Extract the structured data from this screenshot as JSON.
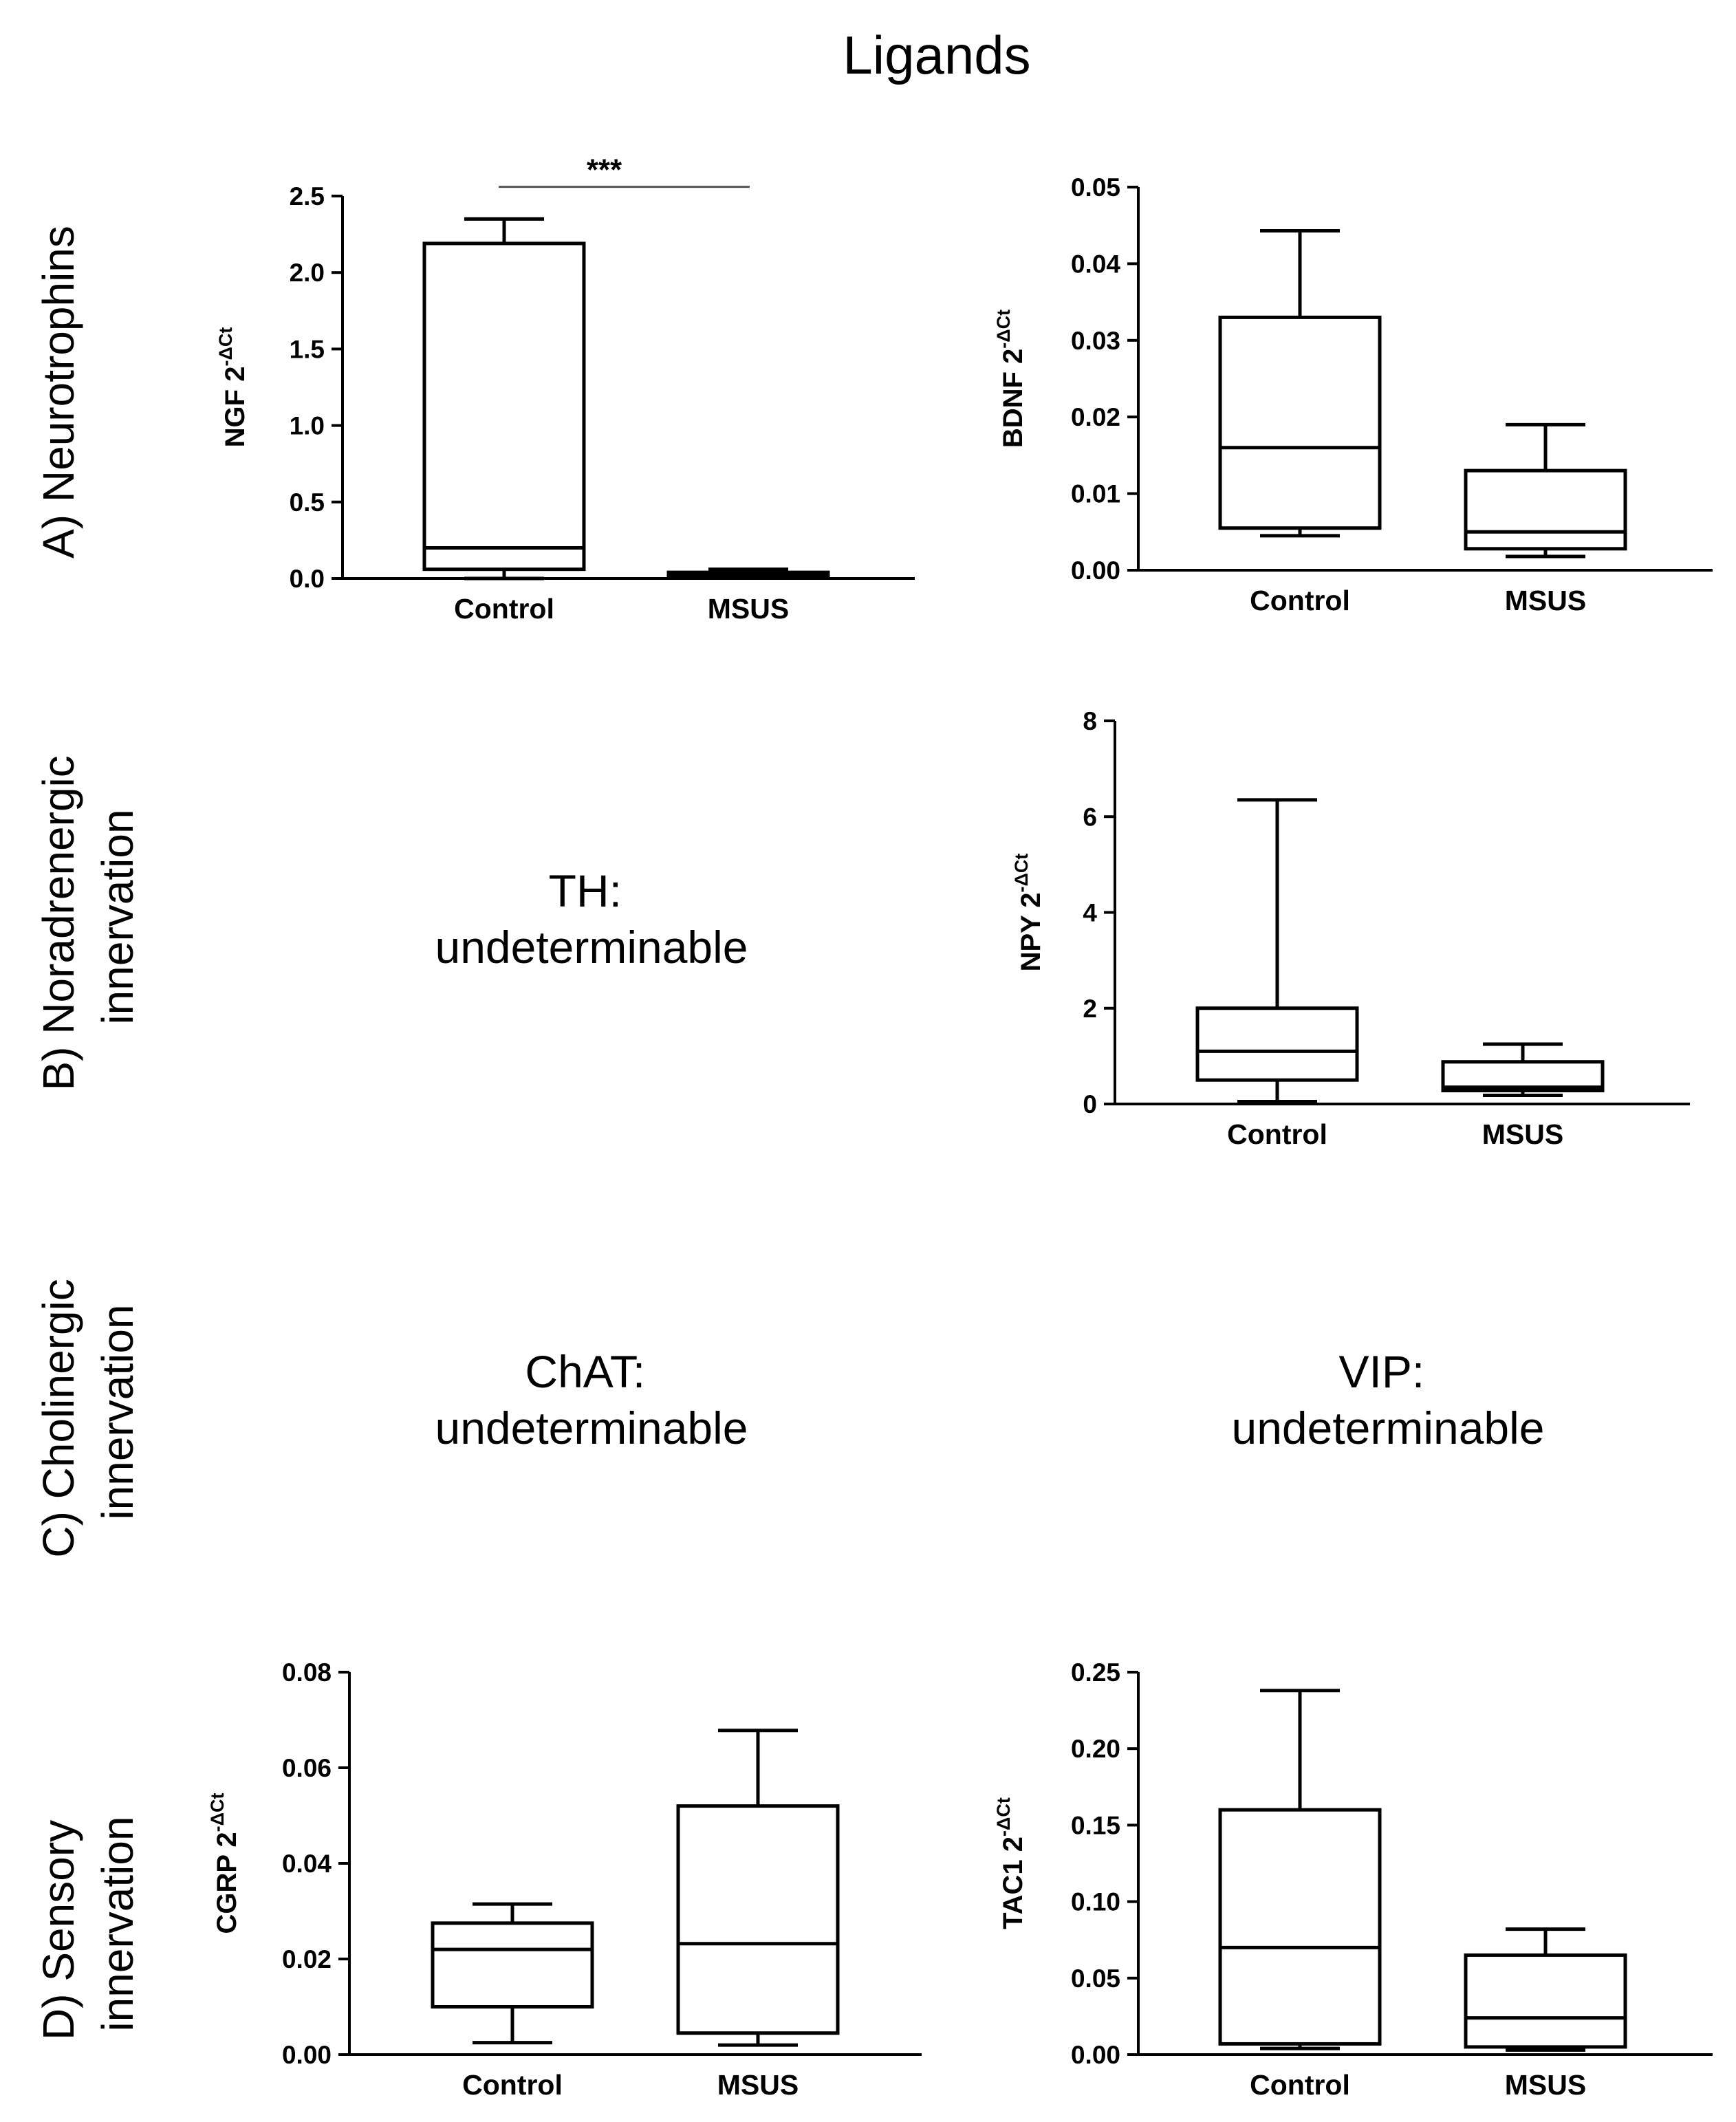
{
  "title": "Ligands",
  "rows": [
    {
      "id": "A",
      "lines": [
        "A) Neurotrophins"
      ]
    },
    {
      "id": "B",
      "lines": [
        "B) Noradrenergic",
        "innervation"
      ]
    },
    {
      "id": "C",
      "lines": [
        "C) Cholinergic",
        "innervation"
      ]
    },
    {
      "id": "D",
      "lines": [
        "D) Sensory",
        "innervation"
      ]
    }
  ],
  "undeterminable": [
    {
      "id": "TH",
      "label": "TH:",
      "text": "undeterminable"
    },
    {
      "id": "ChAT",
      "label": "ChAT:",
      "text": "undeterminable"
    },
    {
      "id": "VIP",
      "label": "VIP:",
      "text": "undeterminable"
    }
  ],
  "chart_data": [
    {
      "id": "ngf",
      "type": "box",
      "gene": "NGF",
      "ylabel_prefix": "2",
      "ylabel_sup": "-ΔCt",
      "categories": [
        "Control",
        "MSUS"
      ],
      "ylim": [
        0,
        2.5
      ],
      "yticks": [
        0,
        0.5,
        1.0,
        1.5,
        2.0,
        2.5
      ],
      "ytick_labels": [
        "0.0",
        "0.5",
        "1.0",
        "1.5",
        "2.0",
        "2.5"
      ],
      "boxes": [
        {
          "min": 0.0,
          "q1": 0.06,
          "median": 0.2,
          "q3": 2.19,
          "max": 2.35
        },
        {
          "min": 0.005,
          "q1": 0.01,
          "median": 0.02,
          "q3": 0.04,
          "max": 0.06
        }
      ],
      "significance": {
        "from": 0,
        "to": 1,
        "label": "***",
        "y": 2.56
      }
    },
    {
      "id": "bdnf",
      "type": "box",
      "gene": "BDNF",
      "ylabel_prefix": "2",
      "ylabel_sup": "-ΔCt",
      "categories": [
        "Control",
        "MSUS"
      ],
      "ylim": [
        0,
        0.05
      ],
      "yticks": [
        0,
        0.01,
        0.02,
        0.03,
        0.04,
        0.05
      ],
      "ytick_labels": [
        "0.00",
        "0.01",
        "0.02",
        "0.03",
        "0.04",
        "0.05"
      ],
      "boxes": [
        {
          "min": 0.0045,
          "q1": 0.0055,
          "median": 0.016,
          "q3": 0.033,
          "max": 0.0443
        },
        {
          "min": 0.0018,
          "q1": 0.0028,
          "median": 0.005,
          "q3": 0.013,
          "max": 0.019
        }
      ]
    },
    {
      "id": "npy",
      "type": "box",
      "gene": "NPY",
      "ylabel_prefix": "2",
      "ylabel_sup": "-ΔCt",
      "categories": [
        "Control",
        "MSUS"
      ],
      "ylim": [
        0,
        8
      ],
      "yticks": [
        0,
        2,
        4,
        6,
        8
      ],
      "ytick_labels": [
        "0",
        "2",
        "4",
        "6",
        "8"
      ],
      "boxes": [
        {
          "min": 0.05,
          "q1": 0.5,
          "median": 1.1,
          "q3": 2.0,
          "max": 6.35
        },
        {
          "min": 0.18,
          "q1": 0.28,
          "median": 0.35,
          "q3": 0.88,
          "max": 1.25
        }
      ]
    },
    {
      "id": "cgrp",
      "type": "box",
      "gene": "CGRP",
      "ylabel_prefix": "2",
      "ylabel_sup": "-ΔCt",
      "categories": [
        "Control",
        "MSUS"
      ],
      "ylim": [
        0,
        0.08
      ],
      "yticks": [
        0,
        0.02,
        0.04,
        0.06,
        0.08
      ],
      "ytick_labels": [
        "0.00",
        "0.02",
        "0.04",
        "0.06",
        "0.08"
      ],
      "boxes": [
        {
          "min": 0.0025,
          "q1": 0.01,
          "median": 0.022,
          "q3": 0.0275,
          "max": 0.0315
        },
        {
          "min": 0.002,
          "q1": 0.0045,
          "median": 0.0232,
          "q3": 0.052,
          "max": 0.0678
        }
      ]
    },
    {
      "id": "tac1",
      "type": "box",
      "gene": "TAC1",
      "ylabel_prefix": "2",
      "ylabel_sup": "-ΔCt",
      "categories": [
        "Control",
        "MSUS"
      ],
      "ylim": [
        0,
        0.25
      ],
      "yticks": [
        0,
        0.05,
        0.1,
        0.15,
        0.2,
        0.25
      ],
      "ytick_labels": [
        "0.00",
        "0.05",
        "0.10",
        "0.15",
        "0.20",
        "0.25"
      ],
      "boxes": [
        {
          "min": 0.004,
          "q1": 0.007,
          "median": 0.07,
          "q3": 0.16,
          "max": 0.238
        },
        {
          "min": 0.003,
          "q1": 0.005,
          "median": 0.024,
          "q3": 0.065,
          "max": 0.082
        }
      ]
    }
  ]
}
